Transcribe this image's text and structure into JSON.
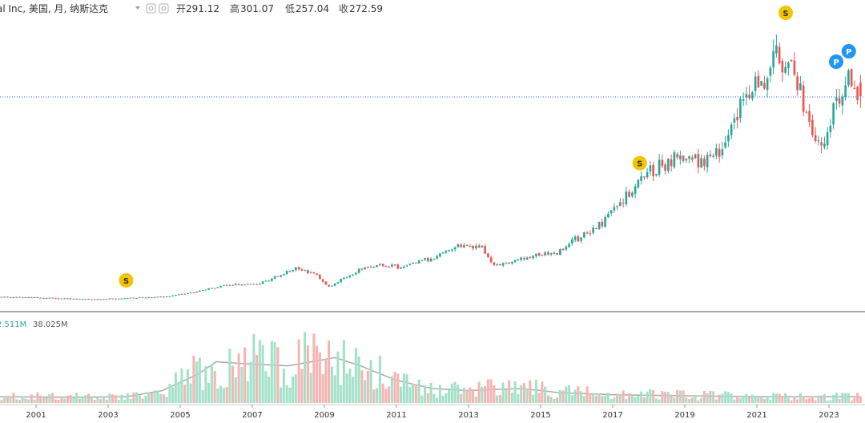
{
  "header": {
    "title": "al Inc, 美国, 月, 纳斯达克",
    "ohlc": [
      {
        "label": "开",
        "value": "291.12"
      },
      {
        "label": "高",
        "value": "301.07"
      },
      {
        "label": "低",
        "value": "257.04"
      },
      {
        "label": "收",
        "value": "272.59"
      }
    ]
  },
  "volume_legend": {
    "value1": "2.511M",
    "value2": "38.025M"
  },
  "colors": {
    "up": "#26a69a",
    "down": "#ef5350",
    "vol_up": "#a3e0c8",
    "vol_down": "#f7b3b1",
    "dividend_badge": "#f2c400",
    "split_badge": "#2196f3",
    "ma_line": "#aaaaaa",
    "price_line": "#2962ff"
  },
  "markers": {
    "dividend": "S",
    "split": "P"
  },
  "chart_data": {
    "type": "candlestick",
    "title": "al Inc, 美国, 月, 纳斯达克",
    "interval": "monthly",
    "exchange": "纳斯达克",
    "x_range": [
      2000.0,
      2024.0
    ],
    "x_tick_labels": [
      "2001",
      "2003",
      "2005",
      "2007",
      "2009",
      "2011",
      "2013",
      "2015",
      "2017",
      "2019",
      "2021",
      "2023"
    ],
    "last_bar": {
      "open": 291.12,
      "high": 301.07,
      "low": 257.04,
      "close": 272.59
    },
    "reference_price": 272.59,
    "price_y_range": [
      -6,
      370
    ],
    "price_anchors": [
      [
        2000.0,
        2.0
      ],
      [
        2001.0,
        1.0
      ],
      [
        2002.5,
        -1.5
      ],
      [
        2003.5,
        0.5
      ],
      [
        2004.6,
        2.0
      ],
      [
        2005.3,
        7.5
      ],
      [
        2006.3,
        18.0
      ],
      [
        2007.2,
        20.0
      ],
      [
        2008.2,
        40.0
      ],
      [
        2008.8,
        32.0
      ],
      [
        2009.1,
        15.0
      ],
      [
        2010.0,
        40.0
      ],
      [
        2010.3,
        45.0
      ],
      [
        2011.2,
        42.0
      ],
      [
        2012.0,
        55.0
      ],
      [
        2012.7,
        70.0
      ],
      [
        2013.4,
        67.0
      ],
      [
        2013.7,
        44.0
      ],
      [
        2014.6,
        55.0
      ],
      [
        2015.5,
        63.0
      ],
      [
        2016.0,
        80.0
      ],
      [
        2016.7,
        100.0
      ],
      [
        2017.5,
        148.0
      ],
      [
        2017.9,
        165.0
      ],
      [
        2018.7,
        190.0
      ],
      [
        2019.0,
        190.0
      ],
      [
        2019.6,
        185.0
      ],
      [
        2020.0,
        205.0
      ],
      [
        2020.6,
        265.0
      ],
      [
        2021.1,
        290.0
      ],
      [
        2021.5,
        330.0
      ],
      [
        2022.0,
        310.0
      ],
      [
        2022.5,
        230.0
      ],
      [
        2022.9,
        215.0
      ],
      [
        2023.2,
        260.0
      ],
      [
        2023.6,
        300.0
      ],
      [
        2023.9,
        272.59
      ]
    ],
    "volume_y_range": [
      0,
      40
    ],
    "volume_anchors": [
      [
        2000.0,
        3.0
      ],
      [
        2002.0,
        2.8
      ],
      [
        2003.5,
        3.0
      ],
      [
        2004.5,
        6.0
      ],
      [
        2005.5,
        14.0
      ],
      [
        2006.0,
        20.0
      ],
      [
        2006.8,
        19.0
      ],
      [
        2008.0,
        18.0
      ],
      [
        2009.3,
        22.0
      ],
      [
        2010.0,
        18.0
      ],
      [
        2011.0,
        11.0
      ],
      [
        2012.0,
        7.0
      ],
      [
        2013.0,
        6.0
      ],
      [
        2014.5,
        7.0
      ],
      [
        2015.5,
        5.0
      ],
      [
        2017.0,
        4.0
      ],
      [
        2019.0,
        3.5
      ],
      [
        2021.0,
        3.0
      ],
      [
        2023.9,
        3.0
      ]
    ],
    "dividend_markers": [
      2003.5,
      2017.75,
      2021.8
    ],
    "split_markers": [
      2023.2,
      2023.55
    ]
  }
}
